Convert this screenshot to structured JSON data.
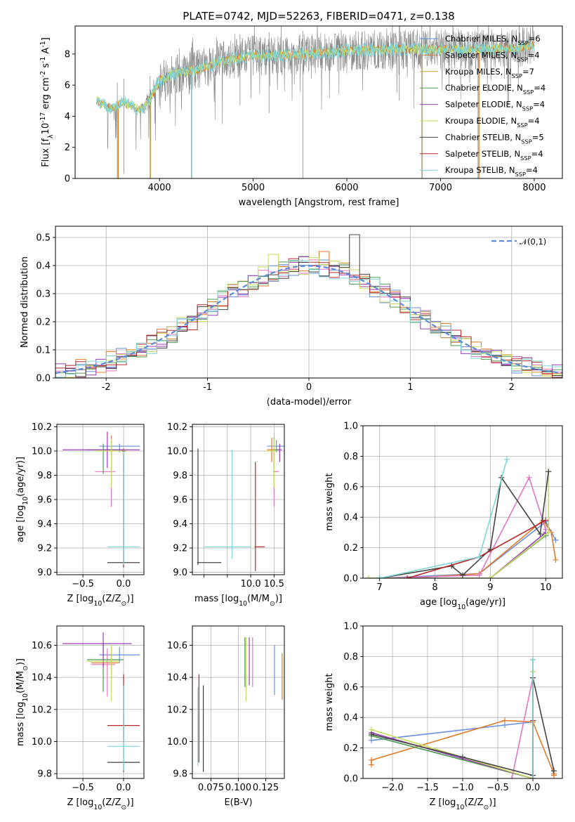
{
  "chart_data": [
    {
      "id": "spectrum",
      "type": "line",
      "title": "PLATE=0742, MJD=52263, FIBERID=0471, z=0.138",
      "xlabel": "wavelength [Angstrom, rest frame]",
      "ylabel": "Flux [f$_\\lambda$10$^{-17}$ erg cm$^{-2}$ s$^{-1}$ A$^{-1}$]",
      "xlim": [
        3100,
        8300
      ],
      "ylim": [
        0,
        9.8
      ],
      "xticks": [
        4000,
        5000,
        6000,
        7000,
        8000
      ],
      "yticks": [
        0,
        2,
        4,
        6,
        8
      ],
      "legend_position": "upper-right",
      "series": [
        {
          "name": "Chabrier MILES, N$_{SSP}$=6",
          "color": "#6a8fdc"
        },
        {
          "name": "Salpeter MILES, N$_{SSP}$=4",
          "color": "#e07b28"
        },
        {
          "name": "Kroupa MILES, N$_{SSP}$=7",
          "color": "#d4a236"
        },
        {
          "name": "Chabrier ELODIE, N$_{SSP}$=4",
          "color": "#4f9a55"
        },
        {
          "name": "Salpeter ELODIE, N$_{SSP}$=4",
          "color": "#9b3fb5"
        },
        {
          "name": "Kroupa ELODIE, N$_{SSP}$=4",
          "color": "#c8dc5a"
        },
        {
          "name": "Chabrier STELIB, N$_{SSP}$=5",
          "color": "#444444"
        },
        {
          "name": "Salpeter STELIB, N$_{SSP}$=4",
          "color": "#b5282a"
        },
        {
          "name": "Kroupa STELIB, N$_{SSP}$=4",
          "color": "#7fd6d6"
        }
      ],
      "observed_color": "#888888",
      "model_color": "#7fd6d6",
      "continuum": [
        [
          3330,
          5.0
        ],
        [
          3500,
          4.5
        ],
        [
          3620,
          4.9
        ],
        [
          3800,
          4.4
        ],
        [
          3900,
          5.1
        ],
        [
          4000,
          6.3
        ],
        [
          4150,
          6.7
        ],
        [
          4400,
          7.0
        ],
        [
          4700,
          7.6
        ],
        [
          5000,
          7.9
        ],
        [
          5300,
          7.9
        ],
        [
          5600,
          8.0
        ],
        [
          6000,
          8.2
        ],
        [
          6500,
          8.3
        ],
        [
          7000,
          8.3
        ],
        [
          7500,
          8.3
        ],
        [
          7800,
          8.4
        ],
        [
          8000,
          8.6
        ]
      ],
      "spike_dips": [
        [
          3550,
          0
        ],
        [
          3620,
          0.3
        ],
        [
          3900,
          0
        ],
        [
          4340,
          0
        ],
        [
          4860,
          4.7
        ],
        [
          5170,
          4.2
        ],
        [
          5530,
          0
        ],
        [
          6560,
          5.0
        ],
        [
          6800,
          0
        ],
        [
          7400,
          0
        ]
      ]
    },
    {
      "id": "residuals",
      "type": "histogram",
      "xlabel": "(data-model)/error",
      "ylabel": "Normed distribution",
      "xlim": [
        -2.5,
        2.5
      ],
      "ylim": [
        0,
        0.54
      ],
      "xticks": [
        -2,
        -1,
        0,
        1,
        2
      ],
      "yticks": [
        0.0,
        0.1,
        0.2,
        0.3,
        0.4,
        0.5
      ],
      "grid": true,
      "gaussian": {
        "name": "$\\mathcal{N}(0,1)$",
        "color": "#5b8bd9",
        "mu": 0,
        "sigma": 1
      },
      "bins": [
        -2.5,
        2.5,
        50
      ],
      "series_colors": [
        "#6a8fdc",
        "#e07b28",
        "#e377c2",
        "#4f9a55",
        "#9b3fb5",
        "#c8dc5a",
        "#444444",
        "#b5282a",
        "#7fd6d6"
      ],
      "highlights": [
        [
          0.45,
          0.51
        ],
        [
          0.15,
          0.45
        ],
        [
          -0.35,
          0.44
        ]
      ]
    },
    {
      "id": "age-vs-Z",
      "type": "errorbar",
      "xlabel": "Z [log$_{10}$(Z/Z$_\\odot$)]",
      "ylabel": "age  [log$_{10}$(age/yr)]",
      "xlim": [
        -0.82,
        0.25
      ],
      "ylim": [
        8.98,
        10.22
      ],
      "xticks": [
        -0.5,
        0.0
      ],
      "yticks": [
        9.0,
        9.2,
        9.4,
        9.6,
        9.8,
        10.0,
        10.2
      ],
      "grid": true,
      "points": [
        {
          "x": -0.05,
          "y": 10.04,
          "xerr": [
            0.25,
            0.25
          ],
          "yerr": [
            0.05,
            0.02
          ],
          "color": "#6a8fdc"
        },
        {
          "x": -0.15,
          "y": 10.01,
          "xerr": [
            0.1,
            0.15
          ],
          "yerr": [
            0.15,
            0.12
          ],
          "color": "#e07b28"
        },
        {
          "x": -0.15,
          "y": 9.83,
          "xerr": [
            0.2,
            0.05
          ],
          "yerr": [
            0.29,
            0.29
          ],
          "color": "#e377c2"
        },
        {
          "x": -0.25,
          "y": 10.01,
          "xerr": [
            0.2,
            0.25
          ],
          "yerr": [
            0.2,
            0.05
          ],
          "color": "#4f9a55"
        },
        {
          "x": -0.2,
          "y": 10.01,
          "xerr": [
            0.55,
            0.4
          ],
          "yerr": [
            0.15,
            0.15
          ],
          "color": "#9b3fb5"
        },
        {
          "x": -0.15,
          "y": 10.0,
          "xerr": [
            0.2,
            0.2
          ],
          "yerr": [
            0.3,
            0.1
          ],
          "color": "#c8dc5a"
        },
        {
          "x": 0.0,
          "y": 9.08,
          "xerr": [
            0.2,
            0.2
          ],
          "yerr": [
            0.04,
            0.9
          ],
          "color": "#444444"
        },
        {
          "x": 0.0,
          "y": 10.0,
          "xerr": [
            0.02,
            0.02
          ],
          "yerr": [
            0.95,
            0.02
          ],
          "color": "#b5282a"
        },
        {
          "x": 0.0,
          "y": 9.21,
          "xerr": [
            0.2,
            0.2
          ],
          "yerr": [
            0.15,
            0.8
          ],
          "color": "#7fd6d6"
        }
      ]
    },
    {
      "id": "age-vs-mass",
      "type": "errorbar",
      "xlabel": "mass [log$_{10}$(M/M$_\\odot$)]",
      "ylabel": "",
      "xlim": [
        8.75,
        10.72
      ],
      "ylim": [
        8.98,
        10.22
      ],
      "xticks": [
        9.0,
        9.5,
        10.0,
        10.5
      ],
      "xtick_labels": [
        "",
        "",
        "10.0",
        "10.5"
      ],
      "yticks": [
        9.0,
        9.2,
        9.4,
        9.6,
        9.8,
        10.0,
        10.2
      ],
      "grid": true,
      "points": [
        {
          "x": 10.55,
          "y": 10.04,
          "xerr": [
            0.2,
            0.25
          ],
          "yerr": [
            0.05,
            0.05
          ],
          "color": "#6a8fdc"
        },
        {
          "x": 10.45,
          "y": 10.01,
          "xerr": [
            0.1,
            0.15
          ],
          "yerr": [
            0.1,
            0.1
          ],
          "color": "#e07b28"
        },
        {
          "x": 10.5,
          "y": 9.83,
          "xerr": [
            0.02,
            0.1
          ],
          "yerr": [
            0.29,
            0.1
          ],
          "color": "#e377c2"
        },
        {
          "x": 10.5,
          "y": 10.01,
          "xerr": [
            0.02,
            0.1
          ],
          "yerr": [
            0.15,
            0.1
          ],
          "color": "#4f9a55"
        },
        {
          "x": 10.62,
          "y": 10.01,
          "xerr": [
            0.05,
            0.05
          ],
          "yerr": [
            0.1,
            0.05
          ],
          "color": "#9b3fb5"
        },
        {
          "x": 10.5,
          "y": 10.0,
          "xerr": [
            0.2,
            0.05
          ],
          "yerr": [
            0.3,
            0.1
          ],
          "color": "#c8dc5a"
        },
        {
          "x": 8.87,
          "y": 9.08,
          "xerr": [
            0.02,
            0.5
          ],
          "yerr": [
            0.02,
            0.94
          ],
          "color": "#444444"
        },
        {
          "x": 10.1,
          "y": 9.21,
          "xerr": [
            0.02,
            0.2
          ],
          "yerr": [
            0.2,
            0.7
          ],
          "color": "#b5282a"
        },
        {
          "x": 9.6,
          "y": 9.21,
          "xerr": [
            0.6,
            0.4
          ],
          "yerr": [
            0.1,
            0.8
          ],
          "color": "#7fd6d6"
        }
      ]
    },
    {
      "id": "massweight-vs-age",
      "type": "line",
      "xlabel": "age  [log$_{10}$(age/yr)]",
      "ylabel": "mass weight",
      "xlim": [
        6.7,
        10.3
      ],
      "ylim": [
        0,
        1.0
      ],
      "xticks": [
        7,
        8,
        9,
        10
      ],
      "yticks": [
        0.0,
        0.2,
        0.4,
        0.6,
        0.8,
        1.0
      ],
      "grid": true,
      "series": [
        {
          "color": "#6a8fdc",
          "x": [
            7.0,
            8.8,
            10.0,
            10.18
          ],
          "y": [
            0.0,
            0.03,
            0.37,
            0.25
          ]
        },
        {
          "color": "#e07b28",
          "x": [
            7.5,
            8.8,
            9.95,
            10.1,
            10.18
          ],
          "y": [
            0.0,
            0.03,
            0.38,
            0.3,
            0.12
          ]
        },
        {
          "color": "#e377c2",
          "x": [
            7.0,
            8.8,
            9.7,
            10.0
          ],
          "y": [
            0.0,
            0.02,
            0.66,
            0.32
          ]
        },
        {
          "color": "#4f9a55",
          "x": [
            6.8,
            9.0,
            10.0
          ],
          "y": [
            0.0,
            0.0,
            0.28
          ]
        },
        {
          "color": "#9b3fb5",
          "x": [
            7.5,
            9.0,
            10.0
          ],
          "y": [
            0.0,
            0.0,
            0.3
          ]
        },
        {
          "color": "#c8dc5a",
          "x": [
            6.8,
            9.0,
            10.05,
            10.05
          ],
          "y": [
            0.0,
            0.0,
            0.3,
            0.7
          ]
        },
        {
          "color": "#444444",
          "x": [
            7.0,
            8.3,
            8.5,
            9.0,
            9.2,
            9.9,
            10.05
          ],
          "y": [
            0.0,
            0.08,
            0.02,
            0.19,
            0.66,
            0.29,
            0.7
          ]
        },
        {
          "color": "#b5282a",
          "x": [
            7.5,
            8.8,
            10.0
          ],
          "y": [
            0.0,
            0.14,
            0.38
          ]
        },
        {
          "color": "#7fd6d6",
          "x": [
            7.0,
            8.8,
            9.3
          ],
          "y": [
            0.0,
            0.14,
            0.78
          ]
        }
      ]
    },
    {
      "id": "mass-vs-Z",
      "type": "errorbar",
      "xlabel": "Z [log$_{10}$(Z/Z$_\\odot$)]",
      "ylabel": "mass [log$_{10}$(M/M$_\\odot$)]",
      "xlim": [
        -0.82,
        0.25
      ],
      "ylim": [
        9.77,
        10.72
      ],
      "xticks": [
        -0.5,
        0.0
      ],
      "yticks": [
        9.8,
        10.0,
        10.2,
        10.4,
        10.6
      ],
      "grid": true,
      "points": [
        {
          "x": -0.05,
          "y": 10.54,
          "xerr": [
            0.25,
            0.25
          ],
          "yerr": [
            0.05,
            0.05
          ],
          "color": "#6a8fdc"
        },
        {
          "x": -0.15,
          "y": 10.49,
          "xerr": [
            0.25,
            0.1
          ],
          "yerr": [
            0.1,
            0.1
          ],
          "color": "#e07b28"
        },
        {
          "x": -0.2,
          "y": 10.48,
          "xerr": [
            0.2,
            0.1
          ],
          "yerr": [
            0.2,
            0.1
          ],
          "color": "#e377c2"
        },
        {
          "x": -0.25,
          "y": 10.51,
          "xerr": [
            0.2,
            0.25
          ],
          "yerr": [
            0.2,
            0.1
          ],
          "color": "#4f9a55"
        },
        {
          "x": -0.25,
          "y": 10.61,
          "xerr": [
            0.5,
            0.35
          ],
          "yerr": [
            0.15,
            0.07
          ],
          "color": "#9b3fb5"
        },
        {
          "x": -0.15,
          "y": 10.5,
          "xerr": [
            0.3,
            0.1
          ],
          "yerr": [
            0.25,
            0.1
          ],
          "color": "#c8dc5a"
        },
        {
          "x": 0.0,
          "y": 9.87,
          "xerr": [
            0.2,
            0.2
          ],
          "yerr": [
            0.06,
            0.48
          ],
          "color": "#444444"
        },
        {
          "x": 0.0,
          "y": 10.1,
          "xerr": [
            0.2,
            0.2
          ],
          "yerr": [
            0.1,
            0.32
          ],
          "color": "#b5282a"
        },
        {
          "x": 0.0,
          "y": 9.97,
          "xerr": [
            0.2,
            0.2
          ],
          "yerr": [
            0.15,
            0.38
          ],
          "color": "#7fd6d6"
        }
      ]
    },
    {
      "id": "mass-vs-EBV",
      "type": "errorbar",
      "xlabel": "E(B-V)",
      "ylabel": "",
      "xlim": [
        0.058,
        0.142
      ],
      "ylim": [
        9.77,
        10.72
      ],
      "xticks": [
        0.075,
        0.1,
        0.125
      ],
      "xtick_labels": [
        "0.075",
        "0.100",
        "0.125"
      ],
      "yticks": [
        9.8,
        10.0,
        10.2,
        10.4,
        10.6
      ],
      "grid": true,
      "points": [
        {
          "x": 0.133,
          "y": 10.45,
          "yerr": [
            0.16,
            0.15
          ],
          "color": "#6a8fdc"
        },
        {
          "x": 0.14,
          "y": 10.4,
          "yerr": [
            0.14,
            0.15
          ],
          "color": "#e07b28"
        },
        {
          "x": 0.113,
          "y": 10.5,
          "yerr": [
            0.16,
            0.15
          ],
          "color": "#e377c2"
        },
        {
          "x": 0.106,
          "y": 10.5,
          "yerr": [
            0.16,
            0.15
          ],
          "color": "#4f9a55"
        },
        {
          "x": 0.11,
          "y": 10.5,
          "yerr": [
            0.15,
            0.15
          ],
          "color": "#9b3fb5"
        },
        {
          "x": 0.107,
          "y": 10.45,
          "yerr": [
            0.2,
            0.2
          ],
          "color": "#c8dc5a"
        },
        {
          "x": 0.068,
          "y": 10.08,
          "yerr": [
            0.27,
            0.27
          ],
          "color": "#444444"
        },
        {
          "x": 0.064,
          "y": 10.15,
          "yerr": [
            0.28,
            0.27
          ],
          "color": "#b5282a"
        },
        {
          "x": 0.063,
          "y": 10.1,
          "yerr": [
            0.25,
            0.24
          ],
          "color": "#7fd6d6"
        }
      ]
    },
    {
      "id": "massweight-vs-Z",
      "type": "line",
      "xlabel": "Z [log$_{10}$(Z/Z$_\\odot$)]",
      "ylabel": "mass weight",
      "xlim": [
        -2.42,
        0.42
      ],
      "ylim": [
        0,
        1.0
      ],
      "xticks": [
        -2.0,
        -1.5,
        -1.0,
        -0.5,
        0.0
      ],
      "yticks": [
        0.0,
        0.2,
        0.4,
        0.6,
        0.8,
        1.0
      ],
      "grid": true,
      "series": [
        {
          "color": "#6a8fdc",
          "x": [
            -2.3,
            -0.4,
            0.0,
            0.0
          ],
          "y": [
            0.25,
            0.35,
            0.37,
            0.78
          ]
        },
        {
          "color": "#e07b28",
          "x": [
            -2.3,
            -2.3,
            -0.4,
            0.0,
            0.3,
            0.3
          ],
          "y": [
            0.09,
            0.12,
            0.38,
            0.37,
            0.03,
            0.02
          ]
        },
        {
          "color": "#e377c2",
          "x": [
            -0.3,
            0.0,
            0.0
          ],
          "y": [
            0.0,
            0.66,
            0.02
          ]
        },
        {
          "color": "#4f9a55",
          "x": [
            -2.3,
            0.0,
            0.0
          ],
          "y": [
            0.28,
            0.0,
            0.7
          ]
        },
        {
          "color": "#9b3fb5",
          "x": [
            -2.3,
            0.0
          ],
          "y": [
            0.3,
            0.0
          ]
        },
        {
          "color": "#c8dc5a",
          "x": [
            -2.3,
            0.0,
            0.0
          ],
          "y": [
            0.32,
            0.0,
            0.7
          ]
        },
        {
          "color": "#444444",
          "x": [
            -2.3,
            -1.0,
            0.0,
            0.0,
            0.3
          ],
          "y": [
            0.29,
            0.14,
            0.02,
            0.66,
            0.05
          ]
        },
        {
          "color": "#b5282a",
          "x": [
            0.0,
            0.0
          ],
          "y": [
            0.0,
            0.38
          ]
        },
        {
          "color": "#7fd6d6",
          "x": [
            0.0,
            0.0
          ],
          "y": [
            0.0,
            0.78
          ]
        }
      ]
    }
  ]
}
